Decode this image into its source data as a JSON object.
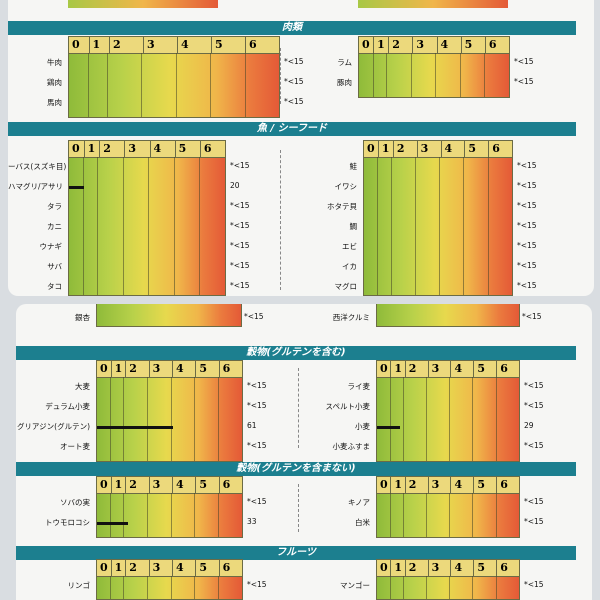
{
  "scale": [
    "0",
    "1",
    "2",
    "3",
    "4",
    "5",
    "6"
  ],
  "sections": {
    "meat": {
      "title": "肉類"
    },
    "fish": {
      "title": "魚 / シーフード"
    },
    "grains_gluten": {
      "title": "穀物(グルテンを含む)"
    },
    "grains_nogluten": {
      "title": "穀物(グルテンを含まない)"
    },
    "fruit": {
      "title": "フルーツ"
    }
  },
  "meat_left": [
    {
      "label": "牛肉",
      "value": "*<15",
      "level": 0
    },
    {
      "label": "鶏肉",
      "value": "*<15",
      "level": 0
    },
    {
      "label": "馬肉",
      "value": "*<15",
      "level": 0
    }
  ],
  "meat_right": [
    {
      "label": "ラム",
      "value": "*<15",
      "level": 0
    },
    {
      "label": "豚肉",
      "value": "*<15",
      "level": 0
    }
  ],
  "fish_left": [
    {
      "label": "ーバス(スズキ目)",
      "value": "*<15",
      "level": 0
    },
    {
      "label": "ハマグリ/アサリ",
      "value": "20",
      "level": 1.1
    },
    {
      "label": "タラ",
      "value": "*<15",
      "level": 0
    },
    {
      "label": "カニ",
      "value": "*<15",
      "level": 0
    },
    {
      "label": "ウナギ",
      "value": "*<15",
      "level": 0
    },
    {
      "label": "サバ",
      "value": "*<15",
      "level": 0
    },
    {
      "label": "タコ",
      "value": "*<15",
      "level": 0
    }
  ],
  "fish_right": [
    {
      "label": "鮭",
      "value": "*<15",
      "level": 0
    },
    {
      "label": "イワシ",
      "value": "*<15",
      "level": 0
    },
    {
      "label": "ホタテ貝",
      "value": "*<15",
      "level": 0
    },
    {
      "label": "鯛",
      "value": "*<15",
      "level": 0
    },
    {
      "label": "エビ",
      "value": "*<15",
      "level": 0
    },
    {
      "label": "イカ",
      "value": "*<15",
      "level": 0
    },
    {
      "label": "マグロ",
      "value": "*<15",
      "level": 0
    }
  ],
  "nuts_left": {
    "label": "銀杏",
    "value": "*<15"
  },
  "nuts_right": {
    "label": "西洋クルミ",
    "value": "*<15"
  },
  "grains_left": [
    {
      "label": "大麦",
      "value": "*<15",
      "level": 0
    },
    {
      "label": "デュラム小麦",
      "value": "*<15",
      "level": 0
    },
    {
      "label": "グリアジン(グルテン)",
      "value": "61",
      "level": 4.1
    },
    {
      "label": "オート麦",
      "value": "*<15",
      "level": 0
    }
  ],
  "grains_right": [
    {
      "label": "ライ麦",
      "value": "*<15",
      "level": 0
    },
    {
      "label": "スペルト小麦",
      "value": "*<15",
      "level": 0
    },
    {
      "label": "小麦",
      "value": "29",
      "level": 1.8
    },
    {
      "label": "小麦ふすま",
      "value": "*<15",
      "level": 0
    }
  ],
  "ng_left": [
    {
      "label": "ソバの実",
      "value": "*<15",
      "level": 0
    },
    {
      "label": "トウモロコシ",
      "value": "33",
      "level": 2.2
    }
  ],
  "ng_right": [
    {
      "label": "キノア",
      "value": "*<15",
      "level": 0
    },
    {
      "label": "白米",
      "value": "*<15",
      "level": 0
    }
  ],
  "fruit_left": [
    {
      "label": "リンゴ",
      "value": "*<15",
      "level": 0
    }
  ],
  "fruit_right": [
    {
      "label": "マンゴー",
      "value": "*<15",
      "level": 0
    }
  ]
}
